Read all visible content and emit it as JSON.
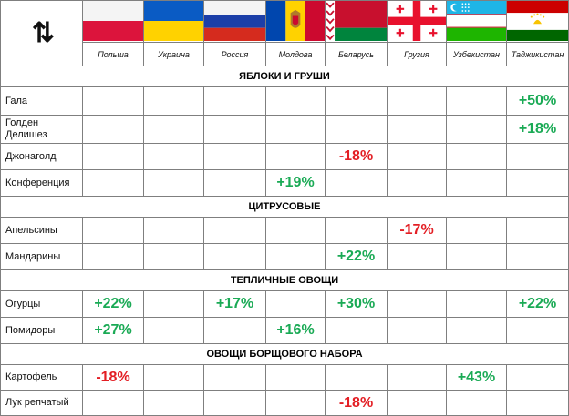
{
  "header": {
    "sort_glyph": "⇅",
    "countries": [
      "Польша",
      "Украина",
      "Россия",
      "Молдова",
      "Беларусь",
      "Грузия",
      "Узбекистан",
      "Таджикистан"
    ]
  },
  "sections": [
    {
      "title": "ЯБЛОКИ И ГРУШИ",
      "rows": [
        {
          "name": "Гала",
          "values": [
            "",
            "",
            "",
            "",
            "",
            "",
            "",
            "+50%"
          ]
        },
        {
          "name": "Голден Делишез",
          "values": [
            "",
            "",
            "",
            "",
            "",
            "",
            "",
            "+18%"
          ]
        },
        {
          "name": "Джонаголд",
          "values": [
            "",
            "",
            "",
            "",
            "-18%",
            "",
            "",
            ""
          ]
        },
        {
          "name": "Конференция",
          "values": [
            "",
            "",
            "",
            "+19%",
            "",
            "",
            "",
            ""
          ]
        }
      ]
    },
    {
      "title": "ЦИТРУСОВЫЕ",
      "rows": [
        {
          "name": "Апельсины",
          "values": [
            "",
            "",
            "",
            "",
            "",
            "-17%",
            "",
            ""
          ]
        },
        {
          "name": "Мандарины",
          "values": [
            "",
            "",
            "",
            "",
            "+22%",
            "",
            "",
            ""
          ]
        }
      ]
    },
    {
      "title": "ТЕПЛИЧНЫЕ ОВОЩИ",
      "rows": [
        {
          "name": "Огурцы",
          "values": [
            "+22%",
            "",
            "+17%",
            "",
            "+30%",
            "",
            "",
            "+22%"
          ]
        },
        {
          "name": "Помидоры",
          "values": [
            "+27%",
            "",
            "",
            "+16%",
            "",
            "",
            "",
            ""
          ]
        }
      ]
    },
    {
      "title": "ОВОЩИ БОРЩОВОГО НАБОРА",
      "rows": [
        {
          "name": "Картофель",
          "values": [
            "-18%",
            "",
            "",
            "",
            "",
            "",
            "+43%",
            ""
          ]
        },
        {
          "name": "Лук репчатый",
          "values": [
            "",
            "",
            "",
            "",
            "-18%",
            "",
            "",
            ""
          ]
        }
      ]
    }
  ],
  "colors": {
    "positive": "#1aaa55",
    "negative": "#e31e24",
    "border": "#7f7f7f"
  }
}
